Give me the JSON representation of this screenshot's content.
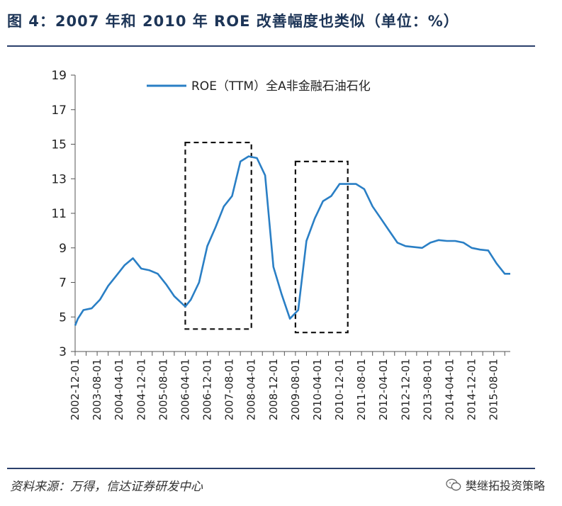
{
  "title": "图 4：2007 年和 2010 年 ROE 改善幅度也类似（单位：%）",
  "source": "资料来源：万得，信达证券研发中心",
  "watermark": "樊继拓投资策略",
  "chart_data": {
    "type": "line",
    "title": "2007 年和 2010 年 ROE 改善幅度也类似（单位：%）",
    "ylim": [
      3,
      19
    ],
    "yticks": [
      "3",
      "5",
      "7",
      "9",
      "11",
      "13",
      "15",
      "17",
      "19"
    ],
    "x_tick_labels": [
      "2002-12-01",
      "2003-08-01",
      "2004-04-01",
      "2004-12-01",
      "2005-08-01",
      "2006-04-01",
      "2006-12-01",
      "2007-08-01",
      "2008-04-01",
      "2008-12-01",
      "2009-08-01",
      "2010-04-01",
      "2010-12-01",
      "2011-08-01",
      "2012-04-01",
      "2012-12-01",
      "2013-08-01",
      "2014-04-01",
      "2014-12-01",
      "2015-08-01"
    ],
    "x_range": [
      "2002-12-01",
      "2016-02-01"
    ],
    "series": [
      {
        "name": "ROE（TTM）全A非金融石油石化",
        "color": "#2a7fc5",
        "points": [
          [
            "2002-12-01",
            4.5
          ],
          [
            "2003-01-01",
            4.9
          ],
          [
            "2003-03-01",
            5.4
          ],
          [
            "2003-06-01",
            5.5
          ],
          [
            "2003-09-01",
            6.0
          ],
          [
            "2003-12-01",
            6.8
          ],
          [
            "2004-03-01",
            7.4
          ],
          [
            "2004-06-01",
            8.0
          ],
          [
            "2004-09-01",
            8.4
          ],
          [
            "2004-12-01",
            7.8
          ],
          [
            "2005-03-01",
            7.7
          ],
          [
            "2005-06-01",
            7.5
          ],
          [
            "2005-09-01",
            6.9
          ],
          [
            "2005-12-01",
            6.2
          ],
          [
            "2006-04-01",
            5.6
          ],
          [
            "2006-06-01",
            6.0
          ],
          [
            "2006-09-01",
            7.0
          ],
          [
            "2006-12-01",
            9.1
          ],
          [
            "2007-03-01",
            10.2
          ],
          [
            "2007-06-01",
            11.4
          ],
          [
            "2007-09-01",
            12.0
          ],
          [
            "2007-12-01",
            14.0
          ],
          [
            "2008-03-01",
            14.3
          ],
          [
            "2008-06-01",
            14.2
          ],
          [
            "2008-09-01",
            13.2
          ],
          [
            "2008-12-01",
            7.9
          ],
          [
            "2009-03-01",
            6.3
          ],
          [
            "2009-06-01",
            4.9
          ],
          [
            "2009-09-01",
            5.4
          ],
          [
            "2009-12-01",
            9.4
          ],
          [
            "2010-03-01",
            10.7
          ],
          [
            "2010-06-01",
            11.7
          ],
          [
            "2010-09-01",
            12.0
          ],
          [
            "2010-12-01",
            12.7
          ],
          [
            "2011-03-01",
            12.7
          ],
          [
            "2011-06-01",
            12.7
          ],
          [
            "2011-09-01",
            12.4
          ],
          [
            "2011-12-01",
            11.4
          ],
          [
            "2012-03-01",
            10.7
          ],
          [
            "2012-06-01",
            10.0
          ],
          [
            "2012-09-01",
            9.3
          ],
          [
            "2012-12-01",
            9.1
          ],
          [
            "2013-06-01",
            9.0
          ],
          [
            "2013-09-01",
            9.3
          ],
          [
            "2013-12-01",
            9.45
          ],
          [
            "2014-03-01",
            9.4
          ],
          [
            "2014-06-01",
            9.4
          ],
          [
            "2014-09-01",
            9.3
          ],
          [
            "2014-12-01",
            9.0
          ],
          [
            "2015-03-01",
            8.9
          ],
          [
            "2015-06-01",
            8.85
          ],
          [
            "2015-09-01",
            8.1
          ],
          [
            "2015-12-01",
            7.5
          ],
          [
            "2016-02-01",
            7.5
          ]
        ]
      }
    ],
    "highlight_boxes": [
      {
        "x_start": "2006-04-01",
        "x_end": "2008-04-01",
        "y_low": 4.3,
        "y_high": 15.1,
        "style": "dashed"
      },
      {
        "x_start": "2009-08-01",
        "x_end": "2011-03-01",
        "y_low": 4.1,
        "y_high": 14.0,
        "style": "dashed"
      }
    ],
    "legend": {
      "position": "top-center"
    }
  }
}
